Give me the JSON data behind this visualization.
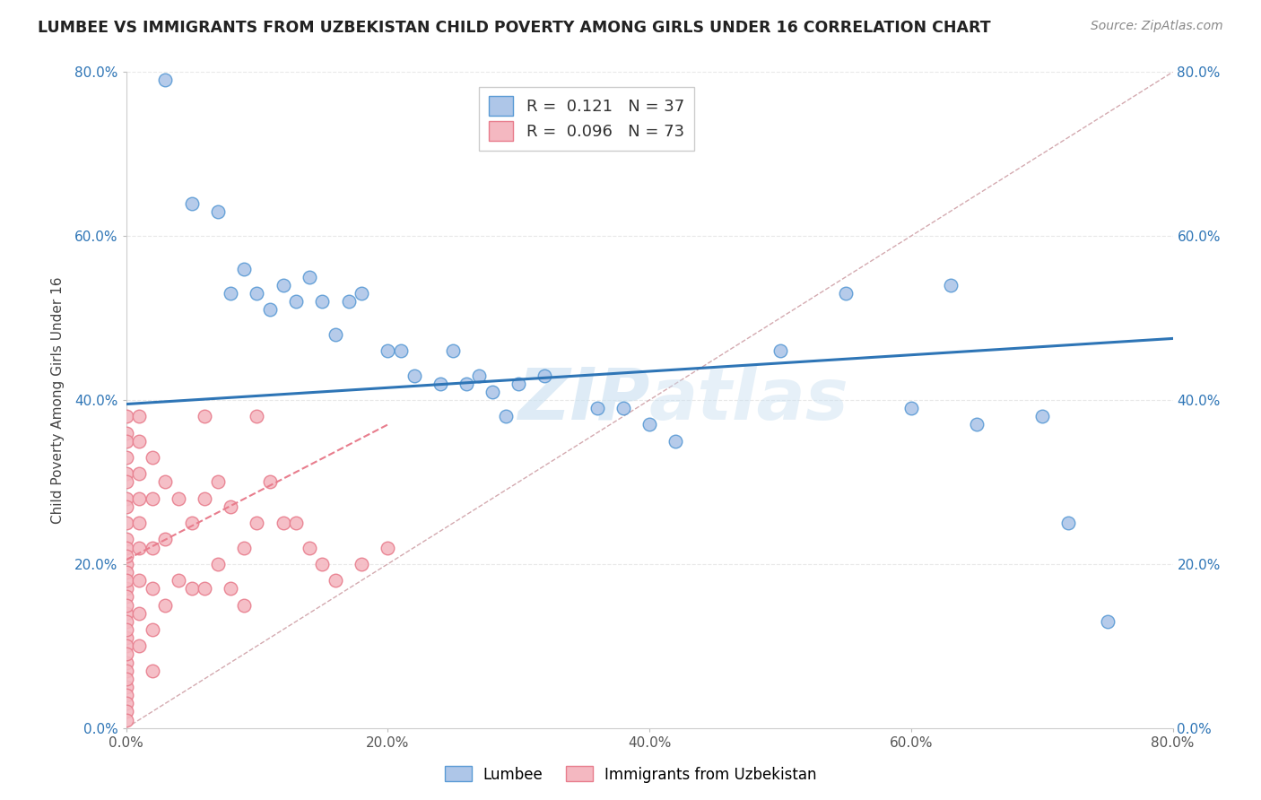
{
  "title": "LUMBEE VS IMMIGRANTS FROM UZBEKISTAN CHILD POVERTY AMONG GIRLS UNDER 16 CORRELATION CHART",
  "source": "Source: ZipAtlas.com",
  "xlabel": "",
  "ylabel": "Child Poverty Among Girls Under 16",
  "watermark": "ZIPAtlas",
  "xlim": [
    0.0,
    0.8
  ],
  "ylim": [
    0.0,
    0.8
  ],
  "xtick_labels": [
    "0.0%",
    "",
    "20.0%",
    "",
    "40.0%",
    "",
    "60.0%",
    "",
    "80.0%"
  ],
  "ytick_labels": [
    "0.0%",
    "20.0%",
    "40.0%",
    "60.0%",
    "80.0%"
  ],
  "xtick_vals": [
    0.0,
    0.1,
    0.2,
    0.3,
    0.4,
    0.5,
    0.6,
    0.7,
    0.8
  ],
  "ytick_vals": [
    0.0,
    0.2,
    0.4,
    0.6,
    0.8
  ],
  "lumbee_color": "#aec6e8",
  "lumbee_edge_color": "#5b9bd5",
  "uzbekistan_color": "#f4b8c1",
  "uzbekistan_edge_color": "#e87d8d",
  "lumbee_R": 0.121,
  "lumbee_N": 37,
  "uzbekistan_R": 0.096,
  "uzbekistan_N": 73,
  "legend_color": "#2e75b6",
  "lumbee_scatter_x": [
    0.03,
    0.05,
    0.07,
    0.08,
    0.09,
    0.1,
    0.11,
    0.12,
    0.13,
    0.14,
    0.15,
    0.16,
    0.17,
    0.18,
    0.2,
    0.21,
    0.22,
    0.24,
    0.25,
    0.26,
    0.27,
    0.28,
    0.29,
    0.3,
    0.32,
    0.36,
    0.38,
    0.4,
    0.42,
    0.5,
    0.55,
    0.6,
    0.63,
    0.65,
    0.7,
    0.72,
    0.75
  ],
  "lumbee_scatter_y": [
    0.79,
    0.64,
    0.63,
    0.53,
    0.56,
    0.53,
    0.51,
    0.54,
    0.52,
    0.55,
    0.52,
    0.48,
    0.52,
    0.53,
    0.46,
    0.46,
    0.43,
    0.42,
    0.46,
    0.42,
    0.43,
    0.41,
    0.38,
    0.42,
    0.43,
    0.39,
    0.39,
    0.37,
    0.35,
    0.46,
    0.53,
    0.39,
    0.54,
    0.37,
    0.38,
    0.25,
    0.13
  ],
  "uzbekistan_scatter_x": [
    0.0,
    0.0,
    0.0,
    0.0,
    0.0,
    0.0,
    0.0,
    0.0,
    0.0,
    0.0,
    0.0,
    0.0,
    0.0,
    0.0,
    0.0,
    0.0,
    0.0,
    0.0,
    0.0,
    0.0,
    0.0,
    0.0,
    0.0,
    0.0,
    0.0,
    0.0,
    0.0,
    0.0,
    0.0,
    0.0,
    0.0,
    0.0,
    0.01,
    0.01,
    0.01,
    0.01,
    0.01,
    0.01,
    0.01,
    0.01,
    0.01,
    0.02,
    0.02,
    0.02,
    0.02,
    0.02,
    0.02,
    0.03,
    0.03,
    0.03,
    0.04,
    0.04,
    0.05,
    0.05,
    0.06,
    0.06,
    0.06,
    0.07,
    0.07,
    0.08,
    0.08,
    0.09,
    0.09,
    0.1,
    0.1,
    0.11,
    0.12,
    0.13,
    0.14,
    0.15,
    0.16,
    0.18,
    0.2
  ],
  "uzbekistan_scatter_y": [
    0.38,
    0.36,
    0.35,
    0.33,
    0.31,
    0.3,
    0.28,
    0.27,
    0.25,
    0.23,
    0.22,
    0.2,
    0.19,
    0.17,
    0.16,
    0.14,
    0.13,
    0.11,
    0.1,
    0.08,
    0.07,
    0.05,
    0.04,
    0.03,
    0.02,
    0.01,
    0.06,
    0.09,
    0.12,
    0.15,
    0.18,
    0.21,
    0.38,
    0.35,
    0.31,
    0.28,
    0.25,
    0.22,
    0.18,
    0.14,
    0.1,
    0.33,
    0.28,
    0.22,
    0.17,
    0.12,
    0.07,
    0.3,
    0.23,
    0.15,
    0.28,
    0.18,
    0.25,
    0.17,
    0.38,
    0.28,
    0.17,
    0.3,
    0.2,
    0.27,
    0.17,
    0.22,
    0.15,
    0.38,
    0.25,
    0.3,
    0.25,
    0.25,
    0.22,
    0.2,
    0.18,
    0.2,
    0.22
  ],
  "lumbee_line_color": "#2e75b6",
  "uzbekistan_line_color": "#e87d8d",
  "diagonal_color": "#d4aab0",
  "background_color": "#ffffff",
  "grid_color": "#e8e8e8",
  "lumbee_trend_x0": 0.0,
  "lumbee_trend_y0": 0.395,
  "lumbee_trend_x1": 0.8,
  "lumbee_trend_y1": 0.475,
  "uzbek_trend_x0": 0.0,
  "uzbek_trend_y0": 0.205,
  "uzbek_trend_x1": 0.2,
  "uzbek_trend_y1": 0.37
}
